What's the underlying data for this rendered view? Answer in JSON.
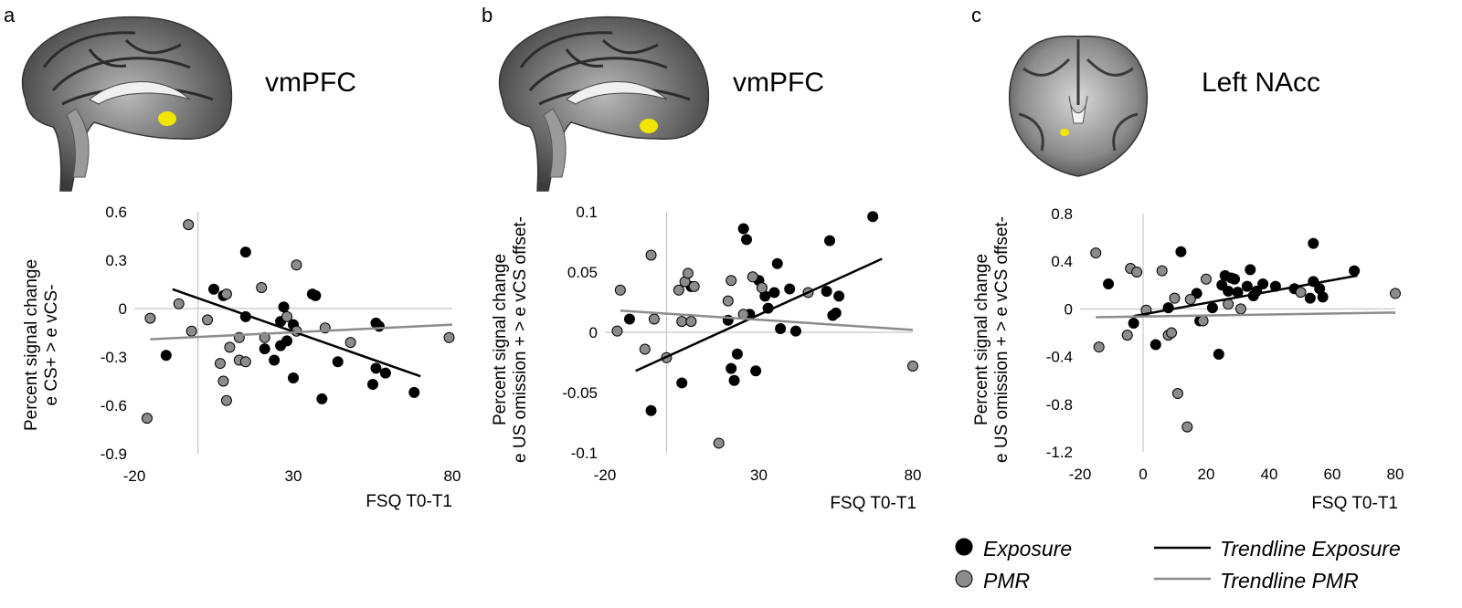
{
  "colors": {
    "exposure": "#000000",
    "pmr": "#8c8c8c",
    "pmr_point_fill": "#8c8c8c",
    "axis": "#c8c8c8",
    "highlight": "#f2e600"
  },
  "panels": [
    {
      "letter": "a",
      "region": "vmPFC",
      "brain_icon": "sagittal-brain-icon"
    },
    {
      "letter": "b",
      "region": "vmPFC",
      "brain_icon": "sagittal-brain-icon"
    },
    {
      "letter": "c",
      "region": "Left NAcc",
      "brain_icon": "coronal-brain-icon"
    }
  ],
  "legend": {
    "exposure": "Exposure",
    "pmr": "PMR",
    "trend_exposure": "Trendline Exposure",
    "trend_pmr": "Trendline PMR"
  },
  "chart_data": [
    {
      "type": "scatter",
      "title": "vmPFC",
      "xlabel": "FSQ T0-T1",
      "ylabel": [
        "Percent signal change",
        "e CS+ > e vCS-"
      ],
      "xlim": [
        -20,
        80
      ],
      "ylim": [
        -0.9,
        0.6
      ],
      "xticks": [
        -20,
        30,
        80
      ],
      "xtick_labels": [
        "-20",
        "30",
        "80"
      ],
      "yticks": [
        0.6,
        0.3,
        0,
        -0.3,
        -0.6,
        -0.9
      ],
      "ytick_labels": [
        "0.6",
        "0.3",
        "0",
        "-0.3",
        "-0.6",
        "-0.9"
      ],
      "series": [
        {
          "name": "Exposure",
          "points": [
            [
              -10,
              -0.29
            ],
            [
              5,
              0.12
            ],
            [
              8,
              0.08
            ],
            [
              15,
              0.35
            ],
            [
              21,
              -0.25
            ],
            [
              24,
              -0.32
            ],
            [
              26,
              -0.23
            ],
            [
              27,
              0.01
            ],
            [
              28,
              -0.2
            ],
            [
              30,
              -0.1
            ],
            [
              30,
              -0.43
            ],
            [
              36,
              0.09
            ],
            [
              37,
              0.08
            ],
            [
              39,
              -0.56
            ],
            [
              44,
              -0.33
            ],
            [
              55,
              -0.47
            ],
            [
              56,
              -0.09
            ],
            [
              56,
              -0.37
            ],
            [
              59,
              -0.4
            ],
            [
              68,
              -0.52
            ],
            [
              15,
              -0.05
            ],
            [
              26,
              -0.08
            ],
            [
              57,
              -0.11
            ]
          ]
        },
        {
          "name": "PMR",
          "points": [
            [
              -16,
              -0.68
            ],
            [
              -15,
              -0.06
            ],
            [
              -6,
              0.03
            ],
            [
              -3,
              0.52
            ],
            [
              -2,
              -0.14
            ],
            [
              3,
              -0.07
            ],
            [
              7,
              -0.34
            ],
            [
              8,
              -0.45
            ],
            [
              9,
              -0.57
            ],
            [
              10,
              -0.24
            ],
            [
              9,
              0.09
            ],
            [
              13,
              -0.32
            ],
            [
              13,
              -0.18
            ],
            [
              15,
              -0.33
            ],
            [
              20,
              0.13
            ],
            [
              21,
              -0.18
            ],
            [
              28,
              -0.05
            ],
            [
              31,
              0.27
            ],
            [
              31,
              -0.14
            ],
            [
              40,
              -0.12
            ],
            [
              48,
              -0.21
            ],
            [
              79,
              -0.18
            ]
          ]
        }
      ],
      "trendlines": [
        {
          "name": "Trendline Exposure",
          "x": [
            -8,
            70
          ],
          "y": [
            0.12,
            -0.42
          ]
        },
        {
          "name": "Trendline PMR",
          "x": [
            -15,
            80
          ],
          "y": [
            -0.19,
            -0.1
          ]
        }
      ]
    },
    {
      "type": "scatter",
      "title": "vmPFC",
      "xlabel": "FSQ T0-T1",
      "ylabel": [
        "Percent signal change",
        "e US omission + > e vCS offset-"
      ],
      "xlim": [
        -20,
        80
      ],
      "ylim": [
        -0.1,
        0.1
      ],
      "xticks": [
        -20,
        30,
        80
      ],
      "xtick_labels": [
        "-20",
        "30",
        "80"
      ],
      "yticks": [
        0.1,
        0.05,
        0,
        -0.05,
        -0.1
      ],
      "ytick_labels": [
        "0.1",
        "0.05",
        "0",
        "-0.05",
        "-0.1"
      ],
      "series": [
        {
          "name": "Exposure",
          "points": [
            [
              -12,
              0.011
            ],
            [
              -5,
              -0.065
            ],
            [
              5,
              -0.042
            ],
            [
              8,
              0.038
            ],
            [
              20,
              0.01
            ],
            [
              21,
              -0.03
            ],
            [
              22,
              -0.04
            ],
            [
              23,
              -0.018
            ],
            [
              25,
              0.086
            ],
            [
              26,
              0.077
            ],
            [
              27,
              0.015
            ],
            [
              29,
              -0.032
            ],
            [
              30,
              0.043
            ],
            [
              32,
              0.03
            ],
            [
              33,
              0.02
            ],
            [
              35,
              0.033
            ],
            [
              36,
              0.057
            ],
            [
              37,
              0.003
            ],
            [
              40,
              0.036
            ],
            [
              42,
              0.001
            ],
            [
              52,
              0.034
            ],
            [
              53,
              0.076
            ],
            [
              54,
              0.014
            ],
            [
              55,
              0.016
            ],
            [
              56,
              0.03
            ],
            [
              67,
              0.096
            ]
          ]
        },
        {
          "name": "PMR",
          "points": [
            [
              -16,
              0.001
            ],
            [
              -15,
              0.035
            ],
            [
              -7,
              -0.014
            ],
            [
              -5,
              0.064
            ],
            [
              -4,
              0.011
            ],
            [
              0,
              -0.021
            ],
            [
              4,
              0.035
            ],
            [
              5,
              0.009
            ],
            [
              6,
              0.042
            ],
            [
              7,
              0.049
            ],
            [
              8,
              0.009
            ],
            [
              9,
              0.038
            ],
            [
              17,
              -0.092
            ],
            [
              20,
              0.026
            ],
            [
              21,
              0.043
            ],
            [
              28,
              0.046
            ],
            [
              31,
              0.037
            ],
            [
              46,
              0.033
            ],
            [
              80,
              -0.028
            ],
            [
              25,
              0.015
            ]
          ]
        }
      ],
      "trendlines": [
        {
          "name": "Trendline Exposure",
          "x": [
            -10,
            70
          ],
          "y": [
            -0.032,
            0.061
          ]
        },
        {
          "name": "Trendline PMR",
          "x": [
            -15,
            80
          ],
          "y": [
            0.018,
            0.002
          ]
        }
      ]
    },
    {
      "type": "scatter",
      "title": "Left NAcc",
      "xlabel": "FSQ T0-T1",
      "ylabel": [
        "Percent signal change",
        "e US omission + > e vCS offset-"
      ],
      "xlim": [
        -20,
        80
      ],
      "ylim": [
        -1.2,
        0.8
      ],
      "xticks": [
        -20,
        0,
        20,
        40,
        60,
        80
      ],
      "xtick_labels": [
        "-20",
        "0",
        "20",
        "40",
        "60",
        "80"
      ],
      "yticks": [
        0.8,
        0.4,
        0,
        -0.4,
        -0.8,
        -1.2
      ],
      "ytick_labels": [
        "0.8",
        "0.4",
        "0",
        "-0.4",
        "-0.8",
        "-1.2"
      ],
      "series": [
        {
          "name": "Exposure",
          "points": [
            [
              -11,
              0.21
            ],
            [
              -3,
              -0.12
            ],
            [
              4,
              -0.3
            ],
            [
              8,
              0.01
            ],
            [
              12,
              0.48
            ],
            [
              17,
              0.13
            ],
            [
              18,
              -0.1
            ],
            [
              22,
              0.01
            ],
            [
              24,
              -0.38
            ],
            [
              25,
              0.2
            ],
            [
              26,
              0.28
            ],
            [
              27,
              0.15
            ],
            [
              28,
              0.26
            ],
            [
              29,
              0.25
            ],
            [
              30,
              0.14
            ],
            [
              33,
              0.19
            ],
            [
              34,
              0.33
            ],
            [
              35,
              0.11
            ],
            [
              36,
              0.15
            ],
            [
              38,
              0.21
            ],
            [
              42,
              0.19
            ],
            [
              48,
              0.17
            ],
            [
              53,
              0.09
            ],
            [
              54,
              0.55
            ],
            [
              54,
              0.23
            ],
            [
              56,
              0.17
            ],
            [
              57,
              0.1
            ],
            [
              67,
              0.32
            ]
          ]
        },
        {
          "name": "PMR",
          "points": [
            [
              -15,
              0.47
            ],
            [
              -14,
              -0.32
            ],
            [
              -5,
              -0.22
            ],
            [
              -4,
              0.34
            ],
            [
              -2,
              0.31
            ],
            [
              1,
              -0.01
            ],
            [
              6,
              0.32
            ],
            [
              8,
              -0.22
            ],
            [
              9,
              -0.2
            ],
            [
              10,
              0.09
            ],
            [
              11,
              -0.71
            ],
            [
              14,
              -0.99
            ],
            [
              15,
              0.08
            ],
            [
              19,
              -0.1
            ],
            [
              20,
              0.25
            ],
            [
              27,
              0.04
            ],
            [
              31,
              0.0
            ],
            [
              50,
              0.14
            ],
            [
              80,
              0.13
            ]
          ]
        }
      ],
      "trendlines": [
        {
          "name": "Trendline Exposure",
          "x": [
            -3,
            68
          ],
          "y": [
            -0.06,
            0.28
          ]
        },
        {
          "name": "Trendline PMR",
          "x": [
            -15,
            80
          ],
          "y": [
            -0.07,
            -0.03
          ]
        }
      ]
    }
  ]
}
